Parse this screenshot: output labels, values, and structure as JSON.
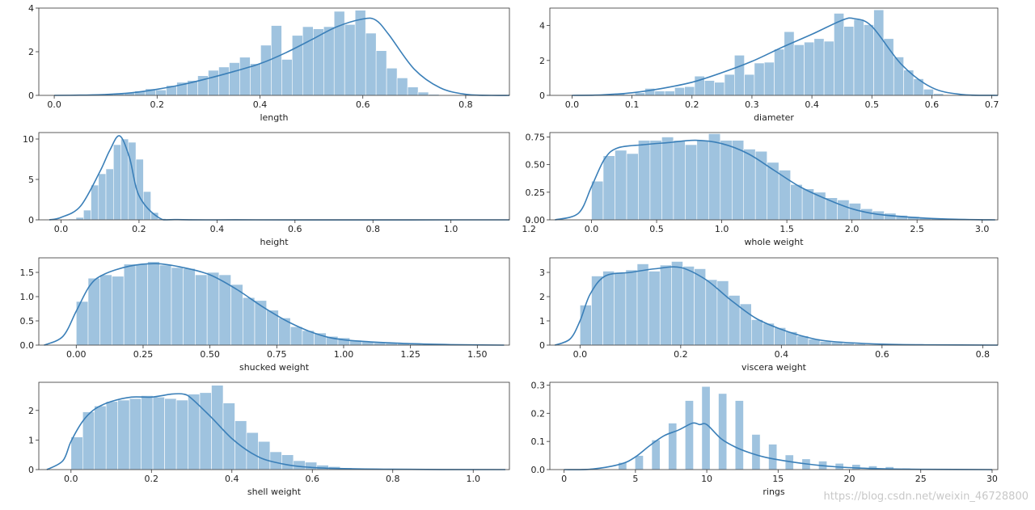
{
  "colors": {
    "bar": "#9fc3df",
    "kde": "#3a7fb8"
  },
  "watermark": "https://blog.csdn.net/weixin_46728800",
  "chart_data": [
    {
      "type": "bar",
      "subtype": "histogram+kde",
      "xlabel": "length",
      "xlim": [
        -0.03,
        0.885
      ],
      "ylim": [
        0,
        4.0
      ],
      "xticks": [
        0.0,
        0.2,
        0.4,
        0.6,
        0.8
      ],
      "xtick_labels": [
        "0.0",
        "0.2",
        "0.4",
        "0.6",
        "0.8"
      ],
      "yticks": [
        0,
        2,
        4
      ],
      "ytick_labels": [
        "0",
        "2",
        "4"
      ],
      "bins_start": 0.075,
      "bin_width": 0.0204,
      "values": [
        0.02,
        0.05,
        0.1,
        0.12,
        0.2,
        0.3,
        0.25,
        0.45,
        0.6,
        0.68,
        0.9,
        1.15,
        1.3,
        1.5,
        1.75,
        1.45,
        2.3,
        3.2,
        1.65,
        2.75,
        3.15,
        3.05,
        3.15,
        3.85,
        3.25,
        3.9,
        2.85,
        2.05,
        1.25,
        0.8,
        0.38,
        0.15,
        0.05
      ],
      "kde_x": [
        0.0,
        0.05,
        0.1,
        0.15,
        0.2,
        0.25,
        0.3,
        0.35,
        0.4,
        0.45,
        0.5,
        0.55,
        0.6,
        0.625,
        0.65,
        0.7,
        0.75,
        0.8,
        0.85,
        0.885
      ],
      "kde_y": [
        0.0,
        0.01,
        0.04,
        0.12,
        0.28,
        0.5,
        0.78,
        1.1,
        1.45,
        1.95,
        2.55,
        3.15,
        3.5,
        3.45,
        2.8,
        1.2,
        0.35,
        0.05,
        0.0,
        0.0
      ]
    },
    {
      "type": "bar",
      "subtype": "histogram+kde",
      "xlabel": "diameter",
      "xlim": [
        -0.037,
        0.71
      ],
      "ylim": [
        0,
        5.0
      ],
      "xticks": [
        0.0,
        0.1,
        0.2,
        0.3,
        0.4,
        0.5,
        0.6,
        0.7
      ],
      "xtick_labels": [
        "0.0",
        "0.1",
        "0.2",
        "0.3",
        "0.4",
        "0.5",
        "0.6",
        "0.7"
      ],
      "yticks": [
        0,
        2,
        4
      ],
      "ytick_labels": [
        "0",
        "2",
        "4"
      ],
      "bins_start": 0.055,
      "bin_width": 0.0166,
      "values": [
        0.05,
        0.1,
        0.05,
        0.15,
        0.4,
        0.25,
        0.25,
        0.45,
        0.5,
        1.1,
        0.85,
        0.75,
        1.2,
        2.3,
        1.2,
        1.85,
        1.9,
        2.65,
        3.65,
        2.9,
        3.05,
        3.25,
        3.1,
        4.7,
        3.95,
        4.35,
        4.05,
        4.9,
        3.25,
        2.2,
        1.45,
        0.95,
        0.35,
        0.1
      ],
      "kde_x": [
        0.0,
        0.05,
        0.1,
        0.15,
        0.2,
        0.25,
        0.3,
        0.35,
        0.4,
        0.45,
        0.47,
        0.5,
        0.55,
        0.6,
        0.65,
        0.71
      ],
      "kde_y": [
        0.0,
        0.03,
        0.15,
        0.4,
        0.75,
        1.3,
        1.95,
        2.75,
        3.5,
        4.3,
        4.4,
        3.95,
        1.75,
        0.45,
        0.05,
        0.0
      ]
    },
    {
      "type": "bar",
      "subtype": "histogram+kde",
      "xlabel": "height",
      "xlim": [
        -0.057,
        1.15
      ],
      "ylim": [
        0,
        10.8
      ],
      "xticks": [
        0.0,
        0.2,
        0.4,
        0.6,
        0.8,
        1.0,
        1.2
      ],
      "xtick_labels": [
        "0.0",
        "0.2",
        "0.4",
        "0.6",
        "0.8",
        "1.0",
        "1.2"
      ],
      "yticks": [
        0,
        5,
        10
      ],
      "ytick_labels": [
        "0",
        "5",
        "10"
      ],
      "bins_start": 0.0,
      "bin_width": 0.0192,
      "values": [
        0.05,
        0.1,
        0.3,
        1.2,
        4.3,
        5.7,
        6.3,
        9.3,
        10.0,
        9.6,
        7.5,
        3.5,
        0.9,
        0.15,
        0.05,
        0.03,
        0.02,
        0.01
      ],
      "kde_x": [
        -0.03,
        0.0,
        0.05,
        0.1,
        0.125,
        0.15,
        0.175,
        0.2,
        0.25,
        0.3,
        0.5,
        1.0,
        1.15
      ],
      "kde_y": [
        0.0,
        0.3,
        1.7,
        6.0,
        8.6,
        10.4,
        7.8,
        3.0,
        0.3,
        0.03,
        0.0,
        0.0,
        0.0
      ]
    },
    {
      "type": "bar",
      "subtype": "histogram+kde",
      "xlabel": "whole weight",
      "xlim": [
        -0.32,
        3.12
      ],
      "ylim": [
        0,
        0.79
      ],
      "xticks": [
        0.0,
        0.5,
        1.0,
        1.5,
        2.0,
        2.5,
        3.0
      ],
      "xtick_labels": [
        "0.0",
        "0.5",
        "1.0",
        "1.5",
        "2.0",
        "2.5",
        "3.0"
      ],
      "yticks": [
        0.0,
        0.25,
        0.5,
        0.75
      ],
      "ytick_labels": [
        "0.00",
        "0.25",
        "0.50",
        "0.75"
      ],
      "bins_start": 0.0,
      "bin_width": 0.0899,
      "values": [
        0.35,
        0.58,
        0.63,
        0.6,
        0.72,
        0.72,
        0.75,
        0.72,
        0.68,
        0.72,
        0.78,
        0.72,
        0.72,
        0.64,
        0.62,
        0.52,
        0.45,
        0.32,
        0.28,
        0.25,
        0.2,
        0.18,
        0.15,
        0.1,
        0.08,
        0.06,
        0.04,
        0.03,
        0.02,
        0.01,
        0.01,
        0.01,
        0.005,
        0.003
      ],
      "kde_x": [
        -0.28,
        -0.1,
        0.0,
        0.1,
        0.2,
        0.4,
        0.6,
        0.8,
        1.0,
        1.2,
        1.4,
        1.6,
        1.8,
        2.0,
        2.2,
        2.5,
        2.8,
        3.1
      ],
      "kde_y": [
        0.0,
        0.06,
        0.3,
        0.55,
        0.65,
        0.68,
        0.7,
        0.72,
        0.69,
        0.6,
        0.45,
        0.3,
        0.19,
        0.1,
        0.05,
        0.02,
        0.005,
        0.0
      ]
    },
    {
      "type": "bar",
      "subtype": "histogram+kde",
      "xlabel": "shucked weight",
      "xlim": [
        -0.14,
        1.62
      ],
      "ylim": [
        0,
        1.8
      ],
      "xticks": [
        0.0,
        0.25,
        0.5,
        0.75,
        1.0,
        1.25,
        1.5
      ],
      "xtick_labels": [
        "0.00",
        "0.25",
        "0.50",
        "0.75",
        "1.00",
        "1.25",
        "1.50"
      ],
      "yticks": [
        0.0,
        0.5,
        1.0,
        1.5
      ],
      "ytick_labels": [
        "0.0",
        "0.5",
        "1.0",
        "1.5"
      ],
      "bins_start": 0.0,
      "bin_width": 0.0445,
      "values": [
        0.9,
        1.38,
        1.45,
        1.42,
        1.67,
        1.67,
        1.72,
        1.65,
        1.6,
        1.58,
        1.45,
        1.5,
        1.45,
        1.25,
        0.98,
        0.92,
        0.72,
        0.56,
        0.38,
        0.3,
        0.25,
        0.18,
        0.15,
        0.1,
        0.08,
        0.05,
        0.04,
        0.03,
        0.02,
        0.01,
        0.01,
        0.01,
        0.005,
        0.003
      ],
      "kde_x": [
        -0.12,
        -0.05,
        0.0,
        0.05,
        0.1,
        0.2,
        0.3,
        0.4,
        0.5,
        0.6,
        0.7,
        0.8,
        0.9,
        1.0,
        1.2,
        1.4,
        1.6
      ],
      "kde_y": [
        0.0,
        0.18,
        0.7,
        1.22,
        1.45,
        1.63,
        1.68,
        1.6,
        1.45,
        1.15,
        0.78,
        0.46,
        0.23,
        0.11,
        0.04,
        0.01,
        0.0
      ]
    },
    {
      "type": "bar",
      "subtype": "histogram+kde",
      "xlabel": "viscera weight",
      "xlim": [
        -0.06,
        0.83
      ],
      "ylim": [
        0,
        3.6
      ],
      "xticks": [
        0.0,
        0.2,
        0.4,
        0.6,
        0.8
      ],
      "xtick_labels": [
        "0.0",
        "0.2",
        "0.4",
        "0.6",
        "0.8"
      ],
      "yticks": [
        0,
        1,
        2,
        3
      ],
      "ytick_labels": [
        "0",
        "1",
        "2",
        "3"
      ],
      "bins_start": 0.0,
      "bin_width": 0.0227,
      "values": [
        1.65,
        2.85,
        3.05,
        3.0,
        3.1,
        3.35,
        3.05,
        3.3,
        3.45,
        3.25,
        3.15,
        2.7,
        2.65,
        2.05,
        1.7,
        1.05,
        0.9,
        0.72,
        0.55,
        0.38,
        0.25,
        0.15,
        0.12,
        0.08,
        0.05,
        0.03,
        0.02,
        0.01,
        0.01,
        0.005,
        0.003
      ],
      "kde_x": [
        -0.05,
        -0.02,
        0.0,
        0.02,
        0.05,
        0.1,
        0.15,
        0.2,
        0.25,
        0.3,
        0.35,
        0.4,
        0.45,
        0.5,
        0.6,
        0.7,
        0.83
      ],
      "kde_y": [
        0.0,
        0.25,
        1.0,
        2.1,
        2.85,
        3.0,
        3.15,
        3.2,
        2.7,
        1.85,
        1.1,
        0.65,
        0.33,
        0.15,
        0.04,
        0.01,
        0.0
      ]
    },
    {
      "type": "bar",
      "subtype": "histogram+kde",
      "xlabel": "shell weight",
      "xlim": [
        -0.08,
        1.09
      ],
      "ylim": [
        0,
        2.95
      ],
      "xticks": [
        0.0,
        0.2,
        0.4,
        0.6,
        0.8,
        1.0
      ],
      "xtick_labels": [
        "0.0",
        "0.2",
        "0.4",
        "0.6",
        "0.8",
        "1.0"
      ],
      "yticks": [
        0,
        1,
        2
      ],
      "ytick_labels": [
        "0",
        "1",
        "2"
      ],
      "bins_start": 0.0,
      "bin_width": 0.0291,
      "values": [
        1.1,
        1.95,
        2.15,
        2.3,
        2.35,
        2.4,
        2.5,
        2.45,
        2.4,
        2.35,
        2.55,
        2.6,
        2.85,
        2.25,
        1.65,
        1.25,
        0.95,
        0.6,
        0.5,
        0.3,
        0.25,
        0.15,
        0.1,
        0.06,
        0.04,
        0.03,
        0.02,
        0.01,
        0.01,
        0.005,
        0.003
      ],
      "kde_x": [
        -0.06,
        -0.02,
        0.0,
        0.03,
        0.06,
        0.1,
        0.15,
        0.2,
        0.25,
        0.28,
        0.3,
        0.35,
        0.4,
        0.45,
        0.5,
        0.6,
        0.8,
        1.08
      ],
      "kde_y": [
        0.0,
        0.3,
        0.95,
        1.65,
        2.05,
        2.3,
        2.45,
        2.45,
        2.55,
        2.55,
        2.4,
        1.75,
        1.05,
        0.55,
        0.27,
        0.07,
        0.01,
        0.0
      ]
    },
    {
      "type": "bar",
      "subtype": "histogram+kde",
      "xlabel": "rings",
      "xlim": [
        -1.0,
        30.4
      ],
      "ylim": [
        0,
        0.31
      ],
      "xticks": [
        0,
        5,
        10,
        15,
        20,
        25,
        30
      ],
      "xtick_labels": [
        "0",
        "5",
        "10",
        "15",
        "20",
        "25",
        "30"
      ],
      "yticks": [
        0.0,
        0.1,
        0.2,
        0.3
      ],
      "ytick_labels": [
        "0.0",
        "0.1",
        "0.2",
        "0.3"
      ],
      "bins_start": 3.8,
      "bin_width": 0.585,
      "values": [
        0.025,
        0,
        0.05,
        0.0,
        0.105,
        0.0,
        0.165,
        0.0,
        0.245,
        0.0,
        0.295,
        0.0,
        0.27,
        0.0,
        0.245,
        0.0,
        0.125,
        0.0,
        0.09,
        0.0,
        0.052,
        0.0,
        0.038,
        0.0,
        0.03,
        0.0,
        0.022,
        0.0,
        0.018,
        0.0,
        0.013,
        0.0,
        0.01,
        0.0,
        0.005,
        0.0,
        0.003
      ],
      "kde_x": [
        0,
        2,
        4,
        5,
        6,
        7,
        8,
        9,
        9.5,
        10,
        11,
        12,
        13,
        14,
        15,
        17,
        19,
        21,
        23,
        25,
        30
      ],
      "kde_y": [
        0.0,
        0.002,
        0.02,
        0.045,
        0.085,
        0.12,
        0.14,
        0.165,
        0.16,
        0.16,
        0.11,
        0.08,
        0.06,
        0.045,
        0.035,
        0.02,
        0.01,
        0.005,
        0.002,
        0.001,
        0.0
      ]
    }
  ]
}
